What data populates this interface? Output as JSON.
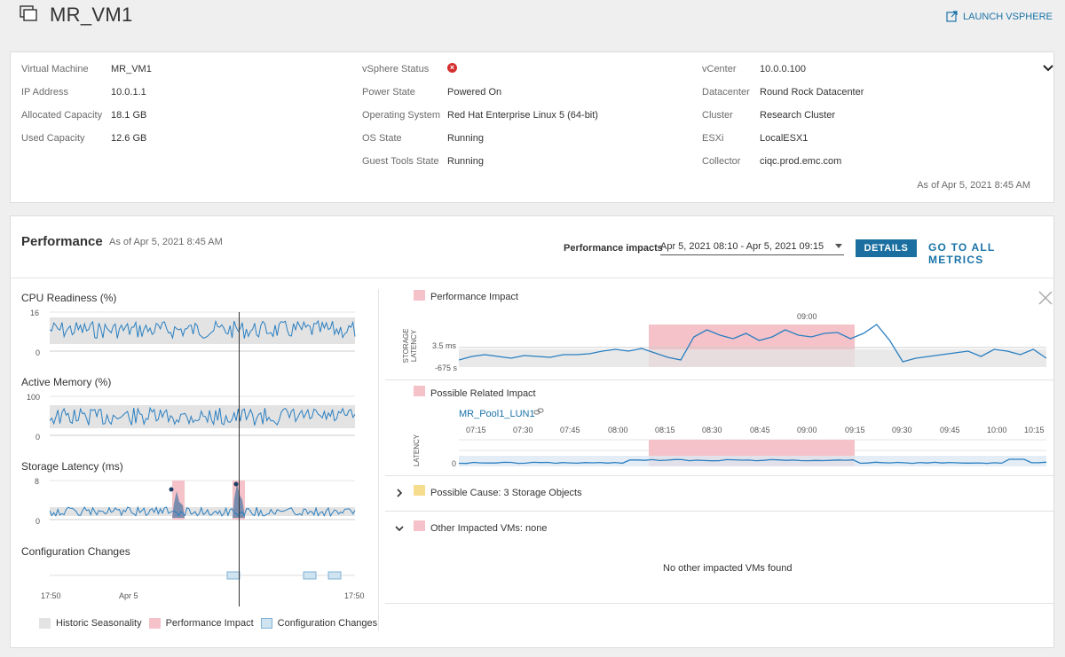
{
  "header": {
    "title": "MR_VM1",
    "launch_label": "LAUNCH VSPHERE"
  },
  "info": {
    "col1": [
      {
        "label": "Virtual Machine",
        "value": "MR_VM1"
      },
      {
        "label": "IP Address",
        "value": "10.0.1.1"
      },
      {
        "label": "Allocated Capacity",
        "value": "18.1 GB"
      },
      {
        "label": "Used Capacity",
        "value": "12.6 GB"
      }
    ],
    "col2": [
      {
        "label": "vSphere Status",
        "value": ""
      },
      {
        "label": "Power State",
        "value": "Powered On"
      },
      {
        "label": "Operating System",
        "value": "Red Hat Enterprise Linux 5 (64-bit)"
      },
      {
        "label": "OS State",
        "value": "Running"
      },
      {
        "label": "Guest Tools State",
        "value": "Running"
      }
    ],
    "col3": [
      {
        "label": "vCenter",
        "value": "10.0.0.100"
      },
      {
        "label": "Datacenter",
        "value": "Round Rock Datacenter"
      },
      {
        "label": "Cluster",
        "value": "Research Cluster"
      },
      {
        "label": "ESXi",
        "value": "LocalESX1"
      },
      {
        "label": "Collector",
        "value": "ciqc.prod.emc.com"
      }
    ],
    "as_of": "As of Apr 5, 2021 8:45 AM",
    "status_color": "#d32f2f"
  },
  "performance": {
    "title": "Performance",
    "as_of": "As of Apr 5, 2021 8:45 AM",
    "impacts_label": "Performance impacts",
    "impacts_value": "Apr 5, 2021 08:10 - Apr 5, 2021 09:15",
    "details_label": "DETAILS",
    "goto_label": "GO TO ALL METRICS",
    "left_charts": {
      "cpu": {
        "title": "CPU Readiness (%)",
        "ymax": "16",
        "ymin": "0"
      },
      "memory": {
        "title": "Active Memory (%)",
        "ymax": "100",
        "ymin": "0"
      },
      "latency": {
        "title": "Storage Latency (ms)",
        "ymax": "8",
        "ymin": "0"
      },
      "config": {
        "title": "Configuration Changes"
      },
      "x_ticks": [
        "17:50",
        "Apr 5",
        "17:50"
      ]
    },
    "legend": [
      {
        "label": "Historic Seasonality",
        "color": "#e3e3e3"
      },
      {
        "label": "Performance Impact",
        "color": "#f4c2c8"
      },
      {
        "label": "Configuration Changes",
        "color": "#cfe3f1"
      }
    ],
    "right": {
      "impact_label": "Performance Impact",
      "impact_top_tick": "09:00",
      "storage_axis": "STORAGE LATENCY",
      "storage_y1": "3.5 ms",
      "storage_y0": "-675 s",
      "related_label": "Possible Related Impact",
      "lun_link": "MR_Pool1_LUN1",
      "latency_axis": "LATENCY",
      "latency_y0": "0",
      "time_ticks": [
        "07:15",
        "07:30",
        "07:45",
        "08:00",
        "08:15",
        "08:30",
        "08:45",
        "09:00",
        "09:15",
        "09:30",
        "09:45",
        "10:00",
        "10:15"
      ],
      "cause_label": "Possible Cause: 3 Storage Objects",
      "other_label": "Other Impacted VMs: none",
      "empty_msg": "No other impacted VMs found",
      "cause_color": "#f6dc8d",
      "impact_color": "#f4c2c8"
    }
  },
  "colors": {
    "accent": "#1a73a8",
    "line": "#2a7fc1",
    "band": "#e3e3e3",
    "impact": "#f4c2c8"
  }
}
